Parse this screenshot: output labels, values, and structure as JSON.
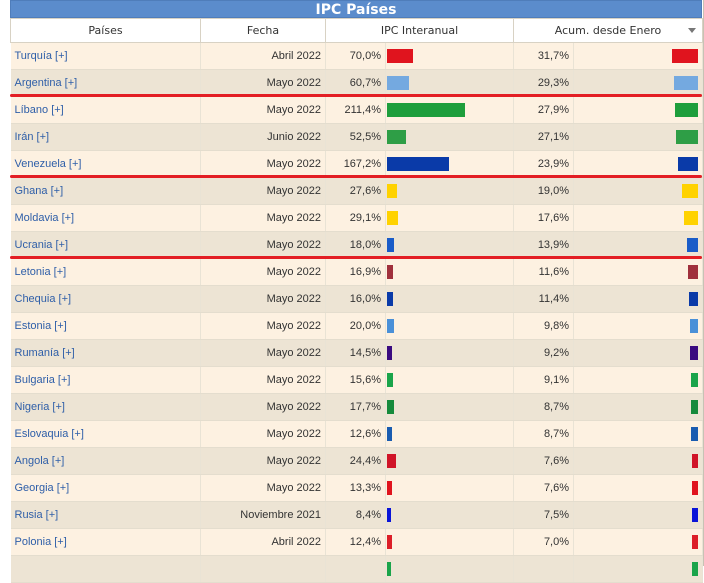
{
  "table": {
    "title": "IPC Países",
    "headers": [
      "Países",
      "Fecha",
      "IPC Interanual",
      "Acum. desde Enero"
    ],
    "sort_icon": "chevron-down-icon",
    "rows": [
      {
        "pais": "Turquía [+]",
        "fecha": "Abril 2022",
        "ipc": "70,0%",
        "ipc_val": 70.0,
        "acum": "31,7%",
        "acum_val": 31.7,
        "color": "#e0141e"
      },
      {
        "pais": "Argentina [+]",
        "fecha": "Mayo 2022",
        "ipc": "60,7%",
        "ipc_val": 60.7,
        "acum": "29,3%",
        "acum_val": 29.3,
        "color": "#74a9e0"
      },
      {
        "pais": "Líbano [+]",
        "fecha": "Mayo 2022",
        "ipc": "211,4%",
        "ipc_val": 211.4,
        "acum": "27,9%",
        "acum_val": 27.9,
        "color": "#1e9e3c"
      },
      {
        "pais": "Irán [+]",
        "fecha": "Junio 2022",
        "ipc": "52,5%",
        "ipc_val": 52.5,
        "acum": "27,1%",
        "acum_val": 27.1,
        "color": "#2e9e46"
      },
      {
        "pais": "Venezuela [+]",
        "fecha": "Mayo 2022",
        "ipc": "167,2%",
        "ipc_val": 167.2,
        "acum": "23,9%",
        "acum_val": 23.9,
        "color": "#0a3aa8"
      },
      {
        "pais": "Ghana [+]",
        "fecha": "Mayo 2022",
        "ipc": "27,6%",
        "ipc_val": 27.6,
        "acum": "19,0%",
        "acum_val": 19.0,
        "color": "#ffd200"
      },
      {
        "pais": "Moldavia [+]",
        "fecha": "Mayo 2022",
        "ipc": "29,1%",
        "ipc_val": 29.1,
        "acum": "17,6%",
        "acum_val": 17.6,
        "color": "#ffd200"
      },
      {
        "pais": "Ucrania [+]",
        "fecha": "Mayo 2022",
        "ipc": "18,0%",
        "ipc_val": 18.0,
        "acum": "13,9%",
        "acum_val": 13.9,
        "color": "#1a5cc8"
      },
      {
        "pais": "Letonia [+]",
        "fecha": "Mayo 2022",
        "ipc": "16,9%",
        "ipc_val": 16.9,
        "acum": "11,6%",
        "acum_val": 11.6,
        "color": "#a0303c"
      },
      {
        "pais": "Chequia [+]",
        "fecha": "Mayo 2022",
        "ipc": "16,0%",
        "ipc_val": 16.0,
        "acum": "11,4%",
        "acum_val": 11.4,
        "color": "#0a3aa8"
      },
      {
        "pais": "Estonia [+]",
        "fecha": "Mayo 2022",
        "ipc": "20,0%",
        "ipc_val": 20.0,
        "acum": "9,8%",
        "acum_val": 9.8,
        "color": "#4a90d8"
      },
      {
        "pais": "Rumanía [+]",
        "fecha": "Mayo 2022",
        "ipc": "14,5%",
        "ipc_val": 14.5,
        "acum": "9,2%",
        "acum_val": 9.2,
        "color": "#3a0a80"
      },
      {
        "pais": "Bulgaria [+]",
        "fecha": "Mayo 2022",
        "ipc": "15,6%",
        "ipc_val": 15.6,
        "acum": "9,1%",
        "acum_val": 9.1,
        "color": "#1aa44a"
      },
      {
        "pais": "Nigeria [+]",
        "fecha": "Mayo 2022",
        "ipc": "17,7%",
        "ipc_val": 17.7,
        "acum": "8,7%",
        "acum_val": 8.7,
        "color": "#168a3c"
      },
      {
        "pais": "Eslovaquia [+]",
        "fecha": "Mayo 2022",
        "ipc": "12,6%",
        "ipc_val": 12.6,
        "acum": "8,7%",
        "acum_val": 8.7,
        "color": "#1a5cb0"
      },
      {
        "pais": "Angola [+]",
        "fecha": "Mayo 2022",
        "ipc": "24,4%",
        "ipc_val": 24.4,
        "acum": "7,6%",
        "acum_val": 7.6,
        "color": "#d01428"
      },
      {
        "pais": "Georgia [+]",
        "fecha": "Mayo 2022",
        "ipc": "13,3%",
        "ipc_val": 13.3,
        "acum": "7,6%",
        "acum_val": 7.6,
        "color": "#e0141e"
      },
      {
        "pais": "Rusia [+]",
        "fecha": "Noviembre 2021",
        "ipc": "8,4%",
        "ipc_val": 8.4,
        "acum": "7,5%",
        "acum_val": 7.5,
        "color": "#0a14d8"
      },
      {
        "pais": "Polonia [+]",
        "fecha": "Abril 2022",
        "ipc": "12,4%",
        "ipc_val": 12.4,
        "acum": "7,0%",
        "acum_val": 7.0,
        "color": "#dc1e28"
      },
      {
        "pais": "",
        "fecha": "",
        "ipc": "",
        "ipc_val": 6.0,
        "acum": "",
        "acum_val": 6.0,
        "color": "#1aa44a"
      }
    ],
    "highlight_after_rows": [
      1,
      4,
      7
    ],
    "highlight_color": "#e31e24"
  }
}
